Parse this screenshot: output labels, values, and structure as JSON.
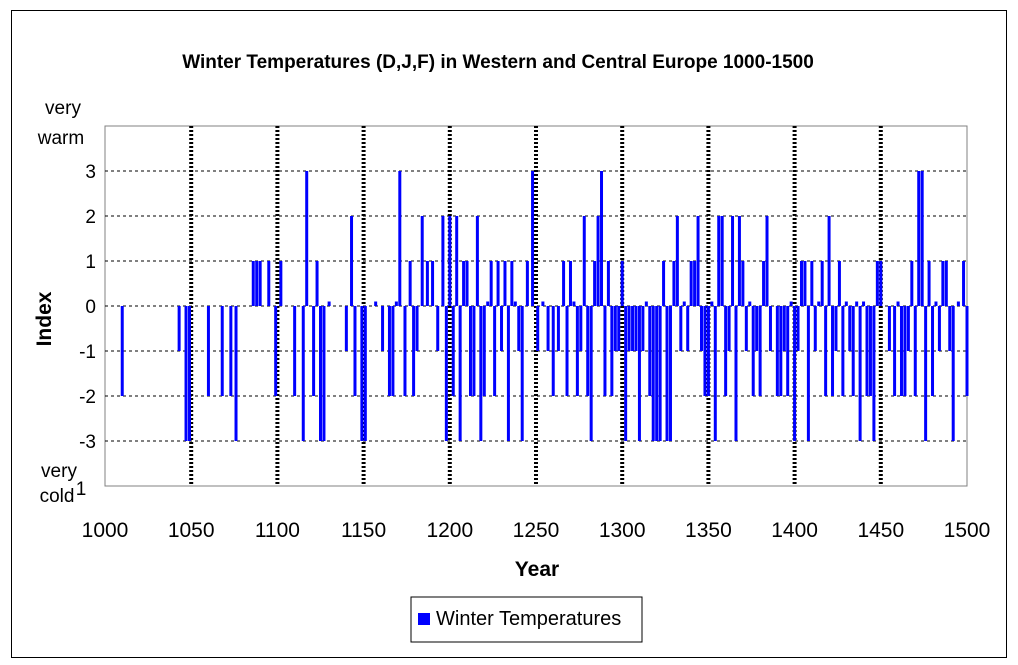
{
  "chart_data": {
    "type": "bar",
    "title": "Winter Temperatures (D,J,F) in Western and Central Europe 1000-1500",
    "xlabel": "Year",
    "ylabel": "Index",
    "xlim": [
      1000,
      1500
    ],
    "ylim": [
      -4,
      4
    ],
    "x_ticks": [
      "1000",
      "1050",
      "1100",
      "1150",
      "1200",
      "1250",
      "1300",
      "1350",
      "1400",
      "1450",
      "1500"
    ],
    "y_ticks": [
      "3",
      "2",
      "1",
      "0",
      "-1",
      "-2",
      "-3"
    ],
    "y_top_label_line1": "very",
    "y_top_label_line2": "warm",
    "y_bottom_label_line1": "very",
    "y_bottom_label_line2": "cold",
    "y_bottom_tick_fragment": "1",
    "vertical_markers": [
      1050,
      1100,
      1150,
      1200,
      1250,
      1300,
      1350,
      1400,
      1450
    ],
    "grid": "dashed horizontal",
    "legend_position": "bottom",
    "series": [
      {
        "name": "Winter Temperatures",
        "color": "#0000ff",
        "points": [
          [
            1010,
            -2
          ],
          [
            1043,
            -1
          ],
          [
            1047,
            -3
          ],
          [
            1049,
            -3
          ],
          [
            1060,
            -2
          ],
          [
            1068,
            -2
          ],
          [
            1073,
            -2
          ],
          [
            1076,
            -3
          ],
          [
            1086,
            1
          ],
          [
            1088,
            1
          ],
          [
            1090,
            1
          ],
          [
            1095,
            1
          ],
          [
            1099,
            -2
          ],
          [
            1102,
            1
          ],
          [
            1110,
            -2
          ],
          [
            1115,
            -3
          ],
          [
            1117,
            3
          ],
          [
            1121,
            -2
          ],
          [
            1123,
            1
          ],
          [
            1125,
            -3
          ],
          [
            1127,
            -3
          ],
          [
            1130,
            0.1
          ],
          [
            1140,
            -1
          ],
          [
            1143,
            2
          ],
          [
            1145,
            -2
          ],
          [
            1149,
            -3
          ],
          [
            1151,
            -3
          ],
          [
            1157,
            0.1
          ],
          [
            1161,
            -1
          ],
          [
            1165,
            -2
          ],
          [
            1167,
            -2
          ],
          [
            1169,
            0.1
          ],
          [
            1171,
            3
          ],
          [
            1174,
            -2
          ],
          [
            1177,
            1
          ],
          [
            1179,
            -2
          ],
          [
            1181,
            -1
          ],
          [
            1184,
            2
          ],
          [
            1187,
            1
          ],
          [
            1190,
            1
          ],
          [
            1193,
            -1
          ],
          [
            1196,
            2
          ],
          [
            1198,
            -3
          ],
          [
            1200,
            2
          ],
          [
            1202,
            -2
          ],
          [
            1204,
            2
          ],
          [
            1206,
            -3
          ],
          [
            1208,
            1
          ],
          [
            1210,
            1
          ],
          [
            1212,
            -2
          ],
          [
            1214,
            -2
          ],
          [
            1216,
            2
          ],
          [
            1218,
            -3
          ],
          [
            1220,
            -2
          ],
          [
            1222,
            0.1
          ],
          [
            1224,
            1
          ],
          [
            1226,
            -2
          ],
          [
            1228,
            1
          ],
          [
            1230,
            -1
          ],
          [
            1232,
            1
          ],
          [
            1234,
            -3
          ],
          [
            1236,
            1
          ],
          [
            1238,
            0.1
          ],
          [
            1240,
            -1
          ],
          [
            1242,
            -3
          ],
          [
            1245,
            1
          ],
          [
            1248,
            3
          ],
          [
            1251,
            -1
          ],
          [
            1254,
            0.1
          ],
          [
            1257,
            -1
          ],
          [
            1260,
            -2
          ],
          [
            1263,
            -1
          ],
          [
            1266,
            1
          ],
          [
            1268,
            -2
          ],
          [
            1270,
            1
          ],
          [
            1272,
            0.1
          ],
          [
            1274,
            -2
          ],
          [
            1276,
            -1
          ],
          [
            1278,
            2
          ],
          [
            1280,
            -2
          ],
          [
            1282,
            -3
          ],
          [
            1284,
            1
          ],
          [
            1286,
            2
          ],
          [
            1288,
            3
          ],
          [
            1290,
            -2
          ],
          [
            1292,
            1
          ],
          [
            1294,
            -2
          ],
          [
            1296,
            -1
          ],
          [
            1298,
            -1
          ],
          [
            1300,
            1
          ],
          [
            1302,
            -3
          ],
          [
            1304,
            -1
          ],
          [
            1306,
            -1
          ],
          [
            1308,
            -1
          ],
          [
            1310,
            -3
          ],
          [
            1312,
            -1
          ],
          [
            1314,
            0.1
          ],
          [
            1316,
            -2
          ],
          [
            1318,
            -3
          ],
          [
            1320,
            -3
          ],
          [
            1322,
            -3
          ],
          [
            1324,
            1
          ],
          [
            1326,
            -3
          ],
          [
            1328,
            -3
          ],
          [
            1330,
            1
          ],
          [
            1332,
            2
          ],
          [
            1334,
            -1
          ],
          [
            1336,
            0.1
          ],
          [
            1338,
            -1
          ],
          [
            1340,
            1
          ],
          [
            1342,
            1
          ],
          [
            1344,
            2
          ],
          [
            1346,
            -1
          ],
          [
            1348,
            -2
          ],
          [
            1350,
            -2
          ],
          [
            1352,
            0.1
          ],
          [
            1354,
            -3
          ],
          [
            1356,
            2
          ],
          [
            1358,
            2
          ],
          [
            1360,
            -2
          ],
          [
            1362,
            -1
          ],
          [
            1364,
            2
          ],
          [
            1366,
            -3
          ],
          [
            1368,
            2
          ],
          [
            1370,
            1
          ],
          [
            1372,
            -1
          ],
          [
            1374,
            0.1
          ],
          [
            1376,
            -2
          ],
          [
            1378,
            -1
          ],
          [
            1380,
            -2
          ],
          [
            1382,
            1
          ],
          [
            1384,
            2
          ],
          [
            1386,
            -1
          ],
          [
            1390,
            -2
          ],
          [
            1392,
            -2
          ],
          [
            1394,
            -1
          ],
          [
            1396,
            -2
          ],
          [
            1398,
            0.1
          ],
          [
            1400,
            -3
          ],
          [
            1402,
            -1
          ],
          [
            1404,
            1
          ],
          [
            1406,
            1
          ],
          [
            1408,
            -3
          ],
          [
            1410,
            1
          ],
          [
            1412,
            -1
          ],
          [
            1414,
            0.1
          ],
          [
            1416,
            1
          ],
          [
            1418,
            -2
          ],
          [
            1420,
            2
          ],
          [
            1422,
            -2
          ],
          [
            1424,
            -1
          ],
          [
            1426,
            1
          ],
          [
            1428,
            -2
          ],
          [
            1430,
            0.1
          ],
          [
            1432,
            -1
          ],
          [
            1434,
            -2
          ],
          [
            1436,
            0.1
          ],
          [
            1438,
            -3
          ],
          [
            1440,
            0.1
          ],
          [
            1442,
            -2
          ],
          [
            1444,
            -2
          ],
          [
            1446,
            -3
          ],
          [
            1448,
            1
          ],
          [
            1450,
            1
          ],
          [
            1455,
            -1
          ],
          [
            1458,
            -2
          ],
          [
            1460,
            0.1
          ],
          [
            1462,
            -2
          ],
          [
            1464,
            -2
          ],
          [
            1466,
            -1
          ],
          [
            1468,
            1
          ],
          [
            1470,
            -2
          ],
          [
            1472,
            3
          ],
          [
            1474,
            3
          ],
          [
            1476,
            -3
          ],
          [
            1478,
            1
          ],
          [
            1480,
            -2
          ],
          [
            1482,
            0.1
          ],
          [
            1484,
            -1
          ],
          [
            1486,
            1
          ],
          [
            1488,
            1
          ],
          [
            1490,
            -1
          ],
          [
            1492,
            -3
          ],
          [
            1495,
            0.1
          ],
          [
            1498,
            1
          ],
          [
            1500,
            -2
          ]
        ]
      }
    ]
  }
}
